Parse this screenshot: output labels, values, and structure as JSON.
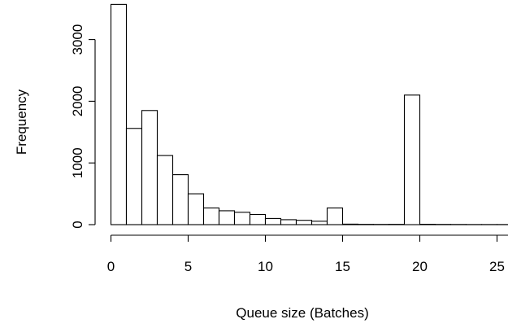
{
  "chart_data": {
    "type": "bar",
    "title": "",
    "xlabel": "Queue size (Batches)",
    "ylabel": "Frequency",
    "xlim": [
      0,
      25.5
    ],
    "ylim": [
      0,
      3600
    ],
    "bin_width": 1,
    "x_ticks": [
      0,
      5,
      10,
      15,
      20,
      25
    ],
    "y_ticks": [
      0,
      1000,
      2000,
      3000
    ],
    "bins": [
      {
        "x0": 0,
        "x1": 1,
        "count": 3570
      },
      {
        "x0": 1,
        "x1": 2,
        "count": 1560
      },
      {
        "x0": 2,
        "x1": 3,
        "count": 1850
      },
      {
        "x0": 3,
        "x1": 4,
        "count": 1120
      },
      {
        "x0": 4,
        "x1": 5,
        "count": 810
      },
      {
        "x0": 5,
        "x1": 6,
        "count": 500
      },
      {
        "x0": 6,
        "x1": 7,
        "count": 270
      },
      {
        "x0": 7,
        "x1": 8,
        "count": 225
      },
      {
        "x0": 8,
        "x1": 9,
        "count": 200
      },
      {
        "x0": 9,
        "x1": 10,
        "count": 165
      },
      {
        "x0": 10,
        "x1": 11,
        "count": 100
      },
      {
        "x0": 11,
        "x1": 12,
        "count": 80
      },
      {
        "x0": 12,
        "x1": 13,
        "count": 70
      },
      {
        "x0": 13,
        "x1": 14,
        "count": 55
      },
      {
        "x0": 14,
        "x1": 15,
        "count": 270
      },
      {
        "x0": 15,
        "x1": 16,
        "count": 8
      },
      {
        "x0": 16,
        "x1": 17,
        "count": 5
      },
      {
        "x0": 17,
        "x1": 18,
        "count": 4
      },
      {
        "x0": 18,
        "x1": 19,
        "count": 5
      },
      {
        "x0": 19,
        "x1": 20,
        "count": 2100
      },
      {
        "x0": 20,
        "x1": 21,
        "count": 6
      },
      {
        "x0": 21,
        "x1": 22,
        "count": 4
      },
      {
        "x0": 22,
        "x1": 23,
        "count": 3
      },
      {
        "x0": 23,
        "x1": 24,
        "count": 2
      },
      {
        "x0": 24,
        "x1": 25,
        "count": 2
      },
      {
        "x0": 25,
        "x1": 26,
        "count": 2
      }
    ],
    "grid": false,
    "legend": "none"
  }
}
